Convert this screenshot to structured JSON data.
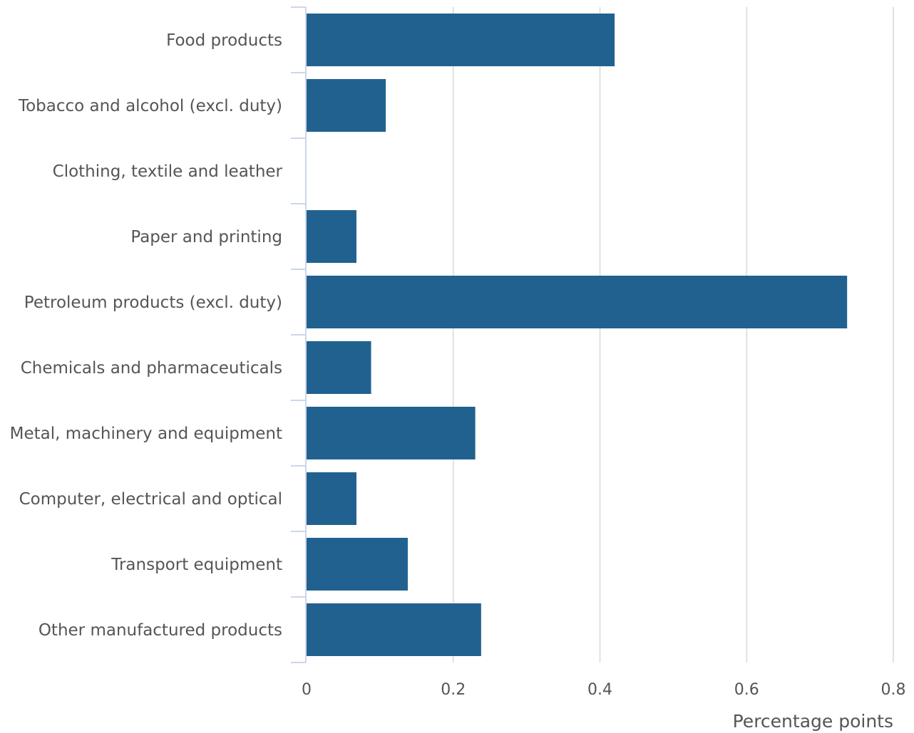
{
  "chart_data": {
    "type": "bar",
    "orientation": "horizontal",
    "categories": [
      "Food products",
      "Tobacco and alcohol (excl. duty)",
      "Clothing, textile and leather",
      "Paper and printing",
      "Petroleum products (excl. duty)",
      "Chemicals and pharmaceuticals",
      "Metal, machinery and equipment",
      "Computer, electrical and optical",
      "Transport equipment",
      "Other manufactured products"
    ],
    "values": [
      0.42,
      0.108,
      0.0,
      0.068,
      0.737,
      0.088,
      0.23,
      0.068,
      0.138,
      0.238
    ],
    "xlabel": "Percentage points",
    "ylabel": "",
    "xlim": [
      0,
      0.8
    ],
    "xticks": [
      0,
      0.2,
      0.4,
      0.6,
      0.8
    ],
    "xtick_labels": [
      "0",
      "0.2",
      "0.4",
      "0.6",
      "0.8"
    ],
    "grid": "vertical",
    "bar_color": "#21618f",
    "grid_color": "#e1e1e1",
    "axis_color": "#ccd6eb",
    "text_color": "#555555"
  }
}
